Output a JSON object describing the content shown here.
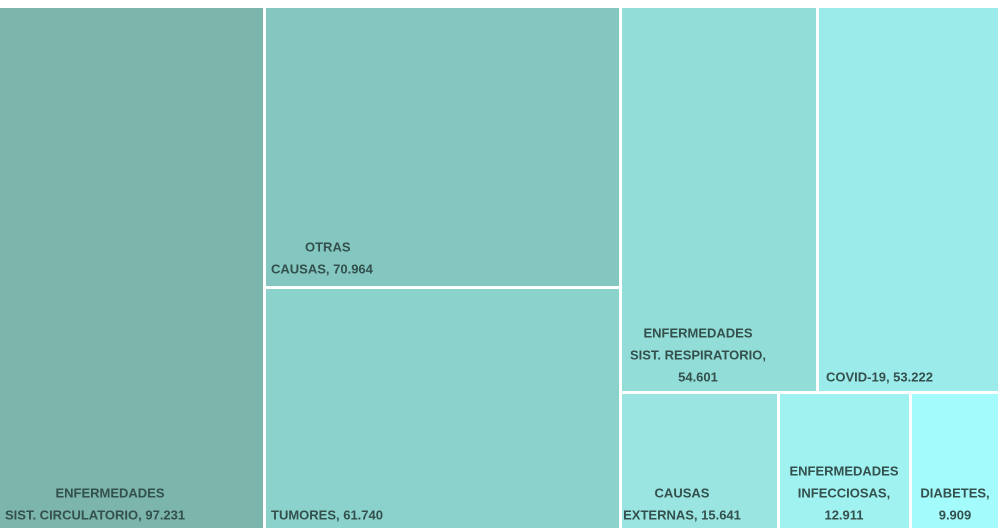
{
  "chart_data": {
    "type": "treemap",
    "labels": [
      [
        "ENFERMEDADES",
        "SIST. CIRCULATORIO, 97.231"
      ],
      [
        "OTRAS",
        "CAUSAS, 70.964"
      ],
      [
        "TUMORES, 61.740"
      ],
      [
        "ENFERMEDADES",
        "SIST. RESPIRATORIO,",
        "54.601"
      ],
      [
        "COVID-19, 53.222"
      ],
      [
        "CAUSAS",
        "EXTERNAS, 15.641"
      ],
      [
        "ENFERMEDADES",
        "INFECCIOSAS,",
        "12.911"
      ],
      [
        "DIABETES,",
        "9.909"
      ]
    ],
    "values": [
      97231,
      70964,
      61740,
      54601,
      53222,
      15641,
      12911,
      9909
    ],
    "colors": [
      "#7bb5ab",
      "#84c7c0",
      "#8bd2cc",
      "#93ddd8",
      "#9bebeb",
      "#9ae5e1",
      "#a0f2f1",
      "#a4fbfb"
    ]
  }
}
